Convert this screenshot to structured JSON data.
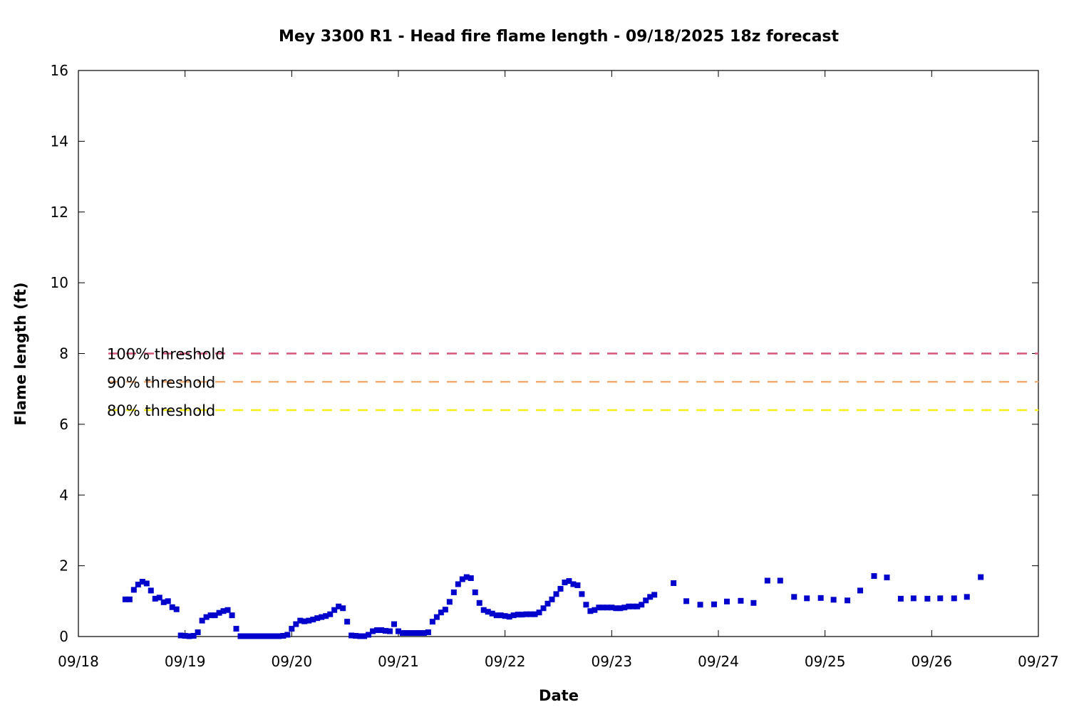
{
  "chart_data": {
    "type": "scatter",
    "title": "Mey 3300 R1 - Head fire flame length - 09/18/2025 18z forecast",
    "xlabel": "Date",
    "ylabel": "Flame length (ft)",
    "xlim": [
      "09/18",
      "09/27"
    ],
    "ylim": [
      0,
      16
    ],
    "x_ticks": [
      "09/18",
      "09/19",
      "09/20",
      "09/21",
      "09/22",
      "09/23",
      "09/24",
      "09/25",
      "09/26",
      "09/27"
    ],
    "y_ticks": [
      0,
      2,
      4,
      6,
      8,
      10,
      12,
      14,
      16
    ],
    "grid": false,
    "thresholds": [
      {
        "label": "100% threshold",
        "value": 8.0,
        "color": "#d6577a"
      },
      {
        "label": "90% threshold",
        "value": 7.2,
        "color": "#f2ad74"
      },
      {
        "label": "80% threshold",
        "value": 6.4,
        "color": "#f5f019"
      }
    ],
    "series": [
      {
        "color": "#0000cc",
        "x_unit": "days after 09/18 00:00",
        "points": [
          [
            0.44,
            1.05
          ],
          [
            0.48,
            1.05
          ],
          [
            0.52,
            1.32
          ],
          [
            0.56,
            1.47
          ],
          [
            0.6,
            1.55
          ],
          [
            0.64,
            1.5
          ],
          [
            0.68,
            1.3
          ],
          [
            0.72,
            1.07
          ],
          [
            0.76,
            1.1
          ],
          [
            0.8,
            0.97
          ],
          [
            0.84,
            1.0
          ],
          [
            0.88,
            0.83
          ],
          [
            0.92,
            0.77
          ],
          [
            0.96,
            0.03
          ],
          [
            1.0,
            0.02
          ],
          [
            1.04,
            0.01
          ],
          [
            1.08,
            0.02
          ],
          [
            1.12,
            0.12
          ],
          [
            1.16,
            0.45
          ],
          [
            1.2,
            0.55
          ],
          [
            1.24,
            0.6
          ],
          [
            1.28,
            0.6
          ],
          [
            1.32,
            0.67
          ],
          [
            1.36,
            0.72
          ],
          [
            1.4,
            0.75
          ],
          [
            1.44,
            0.6
          ],
          [
            1.48,
            0.22
          ],
          [
            1.52,
            0.01
          ],
          [
            1.56,
            0.01
          ],
          [
            1.6,
            0.01
          ],
          [
            1.64,
            0.01
          ],
          [
            1.68,
            0.01
          ],
          [
            1.72,
            0.01
          ],
          [
            1.76,
            0.01
          ],
          [
            1.8,
            0.01
          ],
          [
            1.84,
            0.01
          ],
          [
            1.88,
            0.01
          ],
          [
            1.92,
            0.02
          ],
          [
            1.96,
            0.05
          ],
          [
            2.0,
            0.22
          ],
          [
            2.04,
            0.35
          ],
          [
            2.08,
            0.45
          ],
          [
            2.12,
            0.43
          ],
          [
            2.16,
            0.45
          ],
          [
            2.2,
            0.48
          ],
          [
            2.24,
            0.52
          ],
          [
            2.28,
            0.55
          ],
          [
            2.32,
            0.58
          ],
          [
            2.36,
            0.63
          ],
          [
            2.4,
            0.75
          ],
          [
            2.44,
            0.85
          ],
          [
            2.48,
            0.8
          ],
          [
            2.52,
            0.42
          ],
          [
            2.56,
            0.03
          ],
          [
            2.6,
            0.02
          ],
          [
            2.64,
            0.01
          ],
          [
            2.68,
            0.01
          ],
          [
            2.72,
            0.05
          ],
          [
            2.76,
            0.15
          ],
          [
            2.8,
            0.18
          ],
          [
            2.84,
            0.18
          ],
          [
            2.88,
            0.16
          ],
          [
            2.92,
            0.15
          ],
          [
            2.96,
            0.35
          ],
          [
            3.0,
            0.15
          ],
          [
            3.04,
            0.1
          ],
          [
            3.08,
            0.1
          ],
          [
            3.12,
            0.1
          ],
          [
            3.16,
            0.1
          ],
          [
            3.2,
            0.1
          ],
          [
            3.24,
            0.1
          ],
          [
            3.28,
            0.12
          ],
          [
            3.32,
            0.42
          ],
          [
            3.36,
            0.55
          ],
          [
            3.4,
            0.68
          ],
          [
            3.44,
            0.76
          ],
          [
            3.48,
            0.98
          ],
          [
            3.52,
            1.25
          ],
          [
            3.56,
            1.48
          ],
          [
            3.6,
            1.62
          ],
          [
            3.64,
            1.68
          ],
          [
            3.68,
            1.65
          ],
          [
            3.72,
            1.25
          ],
          [
            3.76,
            0.95
          ],
          [
            3.8,
            0.75
          ],
          [
            3.84,
            0.7
          ],
          [
            3.88,
            0.65
          ],
          [
            3.92,
            0.6
          ],
          [
            3.96,
            0.6
          ],
          [
            4.0,
            0.58
          ],
          [
            4.04,
            0.56
          ],
          [
            4.08,
            0.6
          ],
          [
            4.12,
            0.62
          ],
          [
            4.16,
            0.62
          ],
          [
            4.2,
            0.63
          ],
          [
            4.24,
            0.63
          ],
          [
            4.28,
            0.63
          ],
          [
            4.32,
            0.68
          ],
          [
            4.36,
            0.8
          ],
          [
            4.4,
            0.93
          ],
          [
            4.44,
            1.05
          ],
          [
            4.48,
            1.2
          ],
          [
            4.52,
            1.35
          ],
          [
            4.56,
            1.53
          ],
          [
            4.6,
            1.57
          ],
          [
            4.64,
            1.48
          ],
          [
            4.68,
            1.45
          ],
          [
            4.72,
            1.2
          ],
          [
            4.76,
            0.9
          ],
          [
            4.8,
            0.72
          ],
          [
            4.84,
            0.75
          ],
          [
            4.88,
            0.82
          ],
          [
            4.92,
            0.82
          ],
          [
            4.96,
            0.82
          ],
          [
            5.0,
            0.82
          ],
          [
            5.04,
            0.8
          ],
          [
            5.08,
            0.8
          ],
          [
            5.12,
            0.82
          ],
          [
            5.16,
            0.85
          ],
          [
            5.2,
            0.85
          ],
          [
            5.24,
            0.85
          ],
          [
            5.28,
            0.9
          ],
          [
            5.32,
            1.02
          ],
          [
            5.36,
            1.12
          ],
          [
            5.4,
            1.18
          ],
          [
            5.58,
            1.51
          ],
          [
            5.7,
            1.0
          ],
          [
            5.83,
            0.9
          ],
          [
            5.96,
            0.91
          ],
          [
            6.08,
            0.99
          ],
          [
            6.21,
            1.01
          ],
          [
            6.33,
            0.95
          ],
          [
            6.46,
            1.58
          ],
          [
            6.58,
            1.58
          ],
          [
            6.71,
            1.12
          ],
          [
            6.83,
            1.08
          ],
          [
            6.96,
            1.09
          ],
          [
            7.08,
            1.04
          ],
          [
            7.21,
            1.02
          ],
          [
            7.33,
            1.3
          ],
          [
            7.46,
            1.71
          ],
          [
            7.58,
            1.67
          ],
          [
            7.71,
            1.07
          ],
          [
            7.83,
            1.08
          ],
          [
            7.96,
            1.07
          ],
          [
            8.08,
            1.08
          ],
          [
            8.21,
            1.08
          ],
          [
            8.33,
            1.12
          ],
          [
            8.46,
            1.68
          ]
        ]
      }
    ]
  }
}
